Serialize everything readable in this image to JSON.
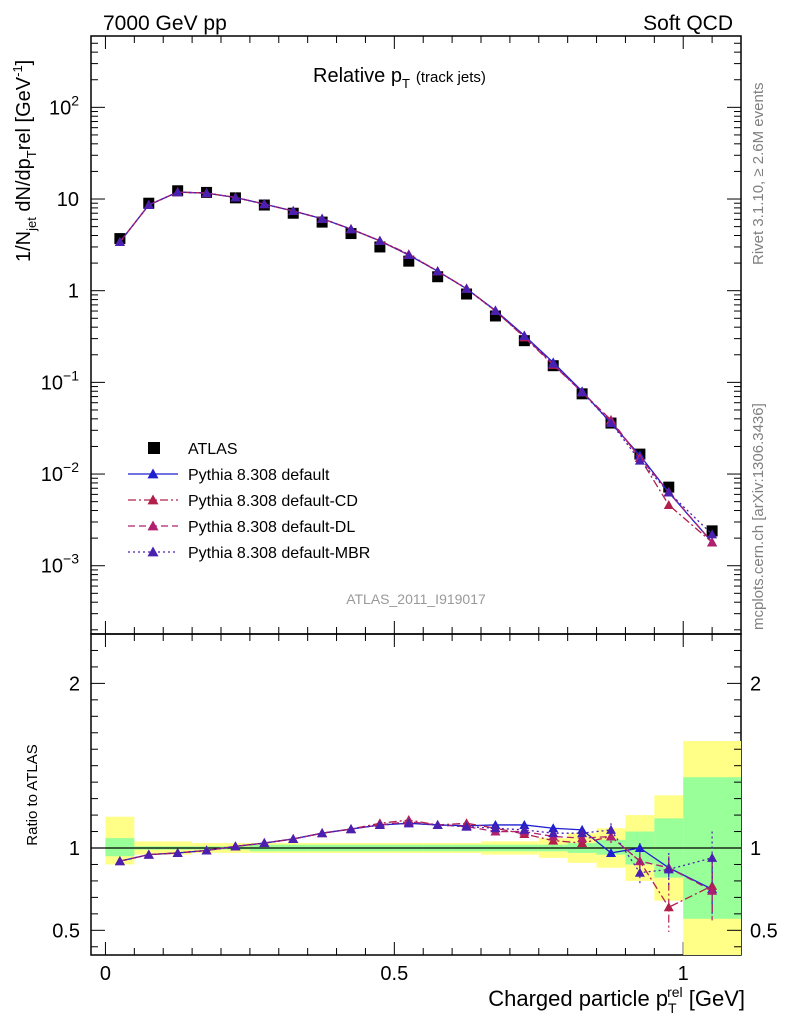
{
  "header": {
    "left": "7000 GeV pp",
    "right": "Soft QCD"
  },
  "side_labels": {
    "rivet": "Rivet 3.1.10, ≥ 2.6M events",
    "source": "mcplots.cern.ch [arXiv:1306.3436]"
  },
  "chart_data": [
    {
      "type": "scatter",
      "panel": "main",
      "title_main": "Relative p",
      "title_sub": "T",
      "title_note": "(track jets)",
      "ylabel": "1/N_jet dN/dp_T^rel [GeV^-1]",
      "ylabel_parts": {
        "a": "1/N",
        "b": "jet",
        "c": " dN/dp",
        "d": "T",
        "e": "rel [GeV",
        "f": "-1",
        "g": "]"
      },
      "yscale": "log",
      "ylim": [
        0.00018,
        600
      ],
      "xlim": [
        -0.025,
        1.1
      ],
      "ytick_labels": [
        {
          "value": 0.001,
          "base": "10",
          "exp": "−3"
        },
        {
          "value": 0.01,
          "base": "10",
          "exp": "−2"
        },
        {
          "value": 0.1,
          "base": "10",
          "exp": "−1"
        },
        {
          "value": 1,
          "base": "1",
          "exp": ""
        },
        {
          "value": 10,
          "base": "10",
          "exp": ""
        },
        {
          "value": 100,
          "base": "10",
          "exp": "2"
        }
      ],
      "analysis_label": "ATLAS_2011_I919017",
      "legend_position": "bottom-left",
      "x": [
        0.025,
        0.075,
        0.125,
        0.175,
        0.225,
        0.275,
        0.325,
        0.375,
        0.425,
        0.475,
        0.525,
        0.575,
        0.625,
        0.675,
        0.725,
        0.775,
        0.825,
        0.875,
        0.925,
        0.975,
        1.05
      ],
      "x_halfwidth": [
        0.025,
        0.025,
        0.025,
        0.025,
        0.025,
        0.025,
        0.025,
        0.025,
        0.025,
        0.025,
        0.025,
        0.025,
        0.025,
        0.025,
        0.025,
        0.025,
        0.025,
        0.025,
        0.025,
        0.025,
        0.05
      ],
      "series": [
        {
          "name": "ATLAS",
          "color": "#000000",
          "marker": "square",
          "line": "none",
          "values": [
            3.7,
            9.0,
            12.3,
            11.8,
            10.3,
            8.6,
            7.0,
            5.6,
            4.2,
            3.0,
            2.1,
            1.42,
            0.92,
            0.53,
            0.285,
            0.152,
            0.075,
            0.036,
            0.0165,
            0.0072,
            0.0024
          ]
        },
        {
          "name": "Pythia 8.308 default",
          "color": "#1f1fd0",
          "marker": "triangle",
          "line": "solid",
          "values": [
            3.4,
            8.6,
            11.9,
            11.6,
            10.4,
            8.8,
            7.4,
            6.1,
            4.7,
            3.5,
            2.45,
            1.63,
            1.05,
            0.61,
            0.325,
            0.165,
            0.08,
            0.036,
            0.016,
            0.0063,
            0.0018
          ]
        },
        {
          "name": "Pythia 8.308 default-CD",
          "color": "#b0204a",
          "marker": "triangle",
          "line": "dashdot",
          "values": [
            3.4,
            8.6,
            11.9,
            11.6,
            10.4,
            8.8,
            7.4,
            6.1,
            4.7,
            3.5,
            2.5,
            1.63,
            1.06,
            0.6,
            0.31,
            0.155,
            0.078,
            0.038,
            0.015,
            0.0046,
            0.0018
          ]
        },
        {
          "name": "Pythia 8.308 default-DL",
          "color": "#b0206e",
          "marker": "triangle",
          "line": "dashed",
          "values": [
            3.4,
            8.6,
            11.9,
            11.6,
            10.4,
            8.8,
            7.4,
            6.1,
            4.7,
            3.5,
            2.45,
            1.63,
            1.05,
            0.6,
            0.315,
            0.158,
            0.078,
            0.039,
            0.015,
            0.0064,
            0.0018
          ]
        },
        {
          "name": "Pythia 8.308 default-MBR",
          "color": "#4a20b0",
          "marker": "triangle",
          "line": "dotted",
          "values": [
            3.4,
            8.6,
            11.9,
            11.6,
            10.4,
            8.8,
            7.4,
            6.1,
            4.7,
            3.5,
            2.45,
            1.63,
            1.05,
            0.6,
            0.32,
            0.16,
            0.078,
            0.036,
            0.014,
            0.0063,
            0.0022
          ]
        }
      ]
    },
    {
      "type": "line",
      "panel": "ratio",
      "ylabel": "Ratio to ATLAS",
      "xlabel": "Charged particle p_T^rel [GeV]",
      "xlabel_parts": {
        "a": "Charged particle p",
        "b": "T",
        "c": "rel",
        "d": " [GeV]"
      },
      "ylim": [
        0.35,
        2.3
      ],
      "xlim": [
        -0.025,
        1.1
      ],
      "yticks": [
        0.5,
        1,
        2
      ],
      "ytick_labels": [
        "0.5",
        "1",
        "2"
      ],
      "xticks": [
        0,
        0.5,
        1
      ],
      "xtick_labels": [
        "0",
        "0.5",
        "1"
      ],
      "reference_line": 1,
      "band_stat": {
        "color": "#99ff99",
        "low": [
          0.95,
          0.99,
          0.99,
          0.99,
          0.99,
          0.98,
          0.98,
          0.98,
          0.98,
          0.98,
          0.98,
          0.98,
          0.98,
          0.98,
          0.98,
          0.98,
          0.97,
          0.96,
          0.9,
          0.82,
          0.57
        ],
        "high": [
          1.06,
          1.01,
          1.01,
          1.01,
          1.01,
          1.02,
          1.02,
          1.02,
          1.02,
          1.02,
          1.02,
          1.02,
          1.02,
          1.02,
          1.02,
          1.02,
          1.03,
          1.05,
          1.1,
          1.18,
          1.43
        ]
      },
      "band_total": {
        "color": "#ffff88",
        "low": [
          0.9,
          0.96,
          0.96,
          0.97,
          0.97,
          0.97,
          0.97,
          0.97,
          0.97,
          0.97,
          0.97,
          0.97,
          0.97,
          0.96,
          0.96,
          0.94,
          0.91,
          0.88,
          0.8,
          0.68,
          0.35
        ],
        "high": [
          1.19,
          1.04,
          1.04,
          1.03,
          1.03,
          1.03,
          1.03,
          1.03,
          1.03,
          1.03,
          1.03,
          1.03,
          1.03,
          1.04,
          1.04,
          1.06,
          1.09,
          1.12,
          1.2,
          1.32,
          1.65
        ]
      },
      "series": [
        {
          "name": "Pythia 8.308 default",
          "color": "#1f1fd0",
          "line": "solid",
          "values": [
            0.92,
            0.96,
            0.97,
            0.985,
            1.01,
            1.03,
            1.055,
            1.09,
            1.115,
            1.14,
            1.15,
            1.14,
            1.135,
            1.14,
            1.14,
            1.12,
            1.11,
            0.97,
            1.0,
            0.88,
            0.75
          ],
          "err_low": [
            0,
            0,
            0,
            0,
            0,
            0,
            0,
            0,
            0,
            0,
            0,
            0,
            0,
            0,
            0,
            0,
            0,
            0.02,
            0.03,
            0.06,
            0.15
          ],
          "err_high": [
            0,
            0,
            0,
            0,
            0,
            0,
            0,
            0,
            0,
            0,
            0,
            0,
            0,
            0,
            0,
            0,
            0,
            0.02,
            0.03,
            0.06,
            0.15
          ]
        },
        {
          "name": "Pythia 8.308 default-CD",
          "color": "#b0204a",
          "line": "dashdot",
          "values": [
            0.92,
            0.96,
            0.97,
            0.985,
            1.01,
            1.03,
            1.055,
            1.09,
            1.115,
            1.15,
            1.17,
            1.14,
            1.15,
            1.12,
            1.085,
            1.045,
            1.03,
            1.07,
            0.92,
            0.64,
            0.77
          ],
          "err_low": [
            0,
            0,
            0,
            0,
            0,
            0,
            0,
            0,
            0,
            0,
            0,
            0,
            0,
            0,
            0,
            0,
            0.02,
            0.04,
            0.05,
            0.15,
            0.18
          ],
          "err_high": [
            0,
            0,
            0,
            0,
            0,
            0,
            0,
            0,
            0,
            0,
            0,
            0,
            0,
            0,
            0,
            0,
            0.02,
            0.04,
            0.05,
            0.15,
            0.18
          ]
        },
        {
          "name": "Pythia 8.308 default-DL",
          "color": "#b0206e",
          "line": "dashed",
          "values": [
            0.92,
            0.96,
            0.97,
            0.985,
            1.01,
            1.03,
            1.055,
            1.09,
            1.115,
            1.14,
            1.16,
            1.14,
            1.13,
            1.1,
            1.1,
            1.07,
            1.06,
            1.07,
            0.92,
            0.88,
            0.74
          ],
          "err_low": [
            0,
            0,
            0,
            0,
            0,
            0,
            0,
            0,
            0,
            0,
            0,
            0,
            0,
            0,
            0,
            0,
            0.02,
            0.04,
            0.05,
            0.07,
            0.18
          ],
          "err_high": [
            0,
            0,
            0,
            0,
            0,
            0,
            0,
            0,
            0,
            0,
            0,
            0,
            0,
            0,
            0,
            0,
            0.02,
            0.04,
            0.05,
            0.07,
            0.18
          ]
        },
        {
          "name": "Pythia 8.308 default-MBR",
          "color": "#4a20b0",
          "line": "dotted",
          "values": [
            0.92,
            0.96,
            0.97,
            0.985,
            1.01,
            1.03,
            1.055,
            1.09,
            1.115,
            1.14,
            1.15,
            1.14,
            1.13,
            1.12,
            1.11,
            1.09,
            1.09,
            1.11,
            0.85,
            0.87,
            0.94
          ],
          "err_low": [
            0,
            0,
            0,
            0,
            0,
            0,
            0,
            0,
            0,
            0,
            0,
            0,
            0,
            0,
            0,
            0,
            0.02,
            0.04,
            0.07,
            0.1,
            0.16
          ],
          "err_high": [
            0,
            0,
            0,
            0,
            0,
            0,
            0,
            0,
            0,
            0,
            0,
            0,
            0,
            0,
            0,
            0,
            0.02,
            0.04,
            0.07,
            0.1,
            0.16
          ]
        }
      ]
    }
  ]
}
